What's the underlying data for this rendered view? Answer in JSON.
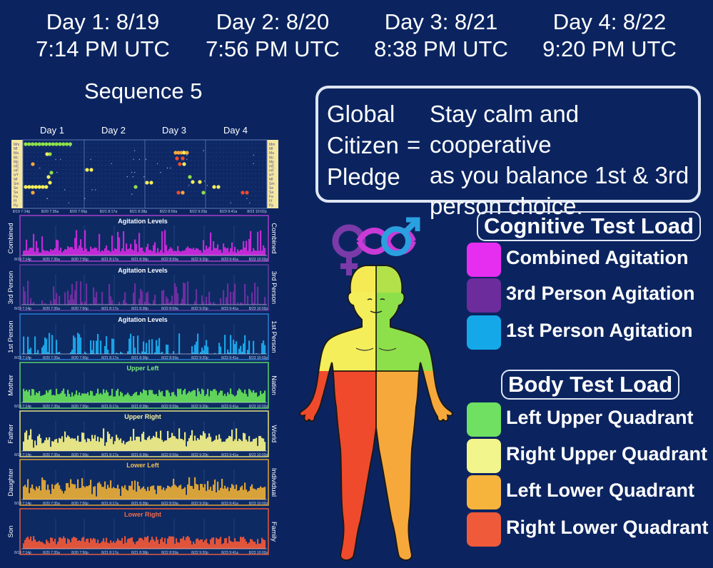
{
  "days": [
    {
      "line1": "Day 1:  8/19",
      "line2": "7:14 PM UTC"
    },
    {
      "line1": "Day 2:  8/20",
      "line2": "7:56 PM UTC"
    },
    {
      "line1": "Day 3:  8/21",
      "line2": "8:38 PM UTC"
    },
    {
      "line1": "Day 4:  8/22",
      "line2": "9:20 PM UTC"
    }
  ],
  "sequence_title": "Sequence 5",
  "pledge": {
    "name_lines": [
      "Global",
      "Citizen",
      "Pledge"
    ],
    "equals": "=",
    "message_lines": [
      "Stay calm and cooperative",
      "as you balance 1st & 3rd",
      "person choice."
    ]
  },
  "cognitive_title": "Cognitive Test Load",
  "cognitive_items": [
    {
      "label": "Combined Agitation",
      "color": "#e52ef0"
    },
    {
      "label": "3rd Person Agitation",
      "color": "#6c2c9c"
    },
    {
      "label": "1st Person Agitation",
      "color": "#15a8e8"
    }
  ],
  "body_title": "Body Test Load",
  "body_items": [
    {
      "label": "Left Upper Quadrant",
      "color": "#6fe062"
    },
    {
      "label": "Right Upper Quadrant",
      "color": "#f2f58b"
    },
    {
      "label": "Left Lower Quadrant",
      "color": "#f7b43c"
    },
    {
      "label": "Right Lower Quadrant",
      "color": "#ef5a3a"
    }
  ],
  "timeline": {
    "day_labels": [
      "Day 1",
      "Day 2",
      "Day 3",
      "Day 4"
    ],
    "row_labels": [
      "Mm",
      "Mf",
      "Ma",
      "Mc",
      "Mp",
      "mE",
      "mF",
      "wY",
      "Mf",
      "Sm",
      "Se",
      "Sa",
      "Fa",
      "Ff",
      "Pp"
    ]
  },
  "x_ticks": [
    "8/19 7:14p",
    "8/20 7:35a",
    "8/20 7:56p",
    "8/21 8:17a",
    "8/21 8:38p",
    "8/22 8:59a",
    "8/22 9:20p",
    "8/23 9:41a",
    "8/23 10:02p"
  ],
  "panels": [
    {
      "title": "Agitation Levels",
      "left": "Combined",
      "right": "Combined",
      "bar": "#c02ad6",
      "border": "#9e3cc4",
      "title_color": "#ffffff"
    },
    {
      "title": "Agitation Levels",
      "left": "3rd Person",
      "right": "3rd Person",
      "bar": "#6b2f9e",
      "border": "#5b3c9c",
      "title_color": "#ffffff"
    },
    {
      "title": "Agitation Levels",
      "left": "1st Person",
      "right": "1st Person",
      "bar": "#1aa3e6",
      "border": "#2a77c8",
      "title_color": "#ffffff"
    },
    {
      "title": "Upper Left",
      "left": "Mother",
      "right": "Nation",
      "bar": "#5fd35a",
      "border": "#55c86a",
      "title_color": "#7cf07c"
    },
    {
      "title": "Upper Right",
      "left": "Father",
      "right": "World",
      "bar": "#e4e385",
      "border": "#d9d67a",
      "title_color": "#f6f49a"
    },
    {
      "title": "Lower Left",
      "left": "Daughter",
      "right": "Individual",
      "bar": "#d8a23a",
      "border": "#d29c35",
      "title_color": "#f5c04a"
    },
    {
      "title": "Lower Right",
      "left": "Son",
      "right": "Family",
      "bar": "#e0543c",
      "border": "#d8583c",
      "title_color": "#f26a4a"
    }
  ]
}
